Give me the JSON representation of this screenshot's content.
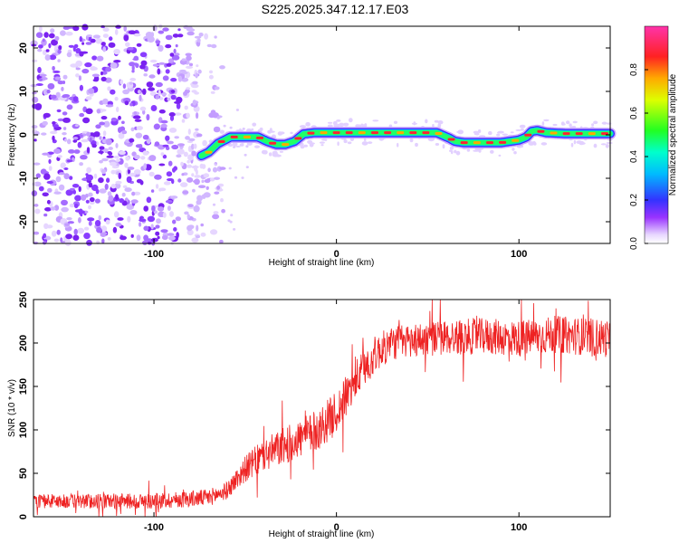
{
  "title": "S225.2025.347.12.17.E03",
  "chart_data": [
    {
      "type": "heatmap",
      "name": "spectrogram",
      "xlabel": "Height of straight line (km)",
      "ylabel": "Frequency (Hz)",
      "xlim": [
        -166,
        150
      ],
      "ylim": [
        -25,
        25
      ],
      "xticks": [
        -100,
        0,
        100
      ],
      "yticks": [
        -20,
        -10,
        0,
        10,
        20
      ],
      "colorbar": {
        "label": "Normalized spectral amplitude",
        "range": [
          0,
          1
        ],
        "ticks": [
          0.0,
          0.2,
          0.4,
          0.6,
          0.8
        ]
      },
      "noise_region_x": [
        -166,
        -70
      ],
      "signal_track": {
        "x": [
          -74,
          -70,
          -65,
          -58,
          -50,
          -43,
          -38,
          -33,
          -28,
          -23,
          -18,
          -12,
          0,
          15,
          30,
          45,
          55,
          62,
          65,
          70,
          80,
          90,
          100,
          104,
          107,
          110,
          115,
          125,
          140,
          150
        ],
        "y": [
          -4.8,
          -4.0,
          -2.0,
          -0.5,
          -0.5,
          -0.5,
          -1.5,
          -2.2,
          -2.2,
          -1.5,
          0.2,
          0.5,
          0.5,
          0.5,
          0.5,
          0.5,
          0.5,
          -0.8,
          -1.5,
          -1.8,
          -1.8,
          -1.8,
          -1.2,
          -0.5,
          0.8,
          1.0,
          0.5,
          0.3,
          0.3,
          0.3
        ]
      }
    },
    {
      "type": "line",
      "name": "snr",
      "xlabel": "Height of straight line (km)",
      "ylabel": "SNR (10 * v/v)",
      "xlim": [
        -166,
        150
      ],
      "ylim": [
        0,
        250
      ],
      "xticks": [
        -100,
        0,
        100
      ],
      "yticks": [
        0,
        50,
        100,
        150,
        200,
        250
      ],
      "color": "#ee2222",
      "trend": {
        "x": [
          -166,
          -100,
          -70,
          -60,
          -50,
          -40,
          -30,
          -20,
          -10,
          0,
          10,
          20,
          30,
          50,
          80,
          100,
          120,
          150
        ],
        "y": [
          18,
          18,
          22,
          30,
          55,
          70,
          80,
          90,
          100,
          120,
          155,
          185,
          200,
          205,
          208,
          205,
          210,
          205
        ]
      },
      "noise_amplitude": {
        "x": [
          -166,
          -60,
          -40,
          0,
          30,
          150
        ],
        "y": [
          8,
          10,
          20,
          25,
          20,
          22
        ]
      }
    }
  ]
}
